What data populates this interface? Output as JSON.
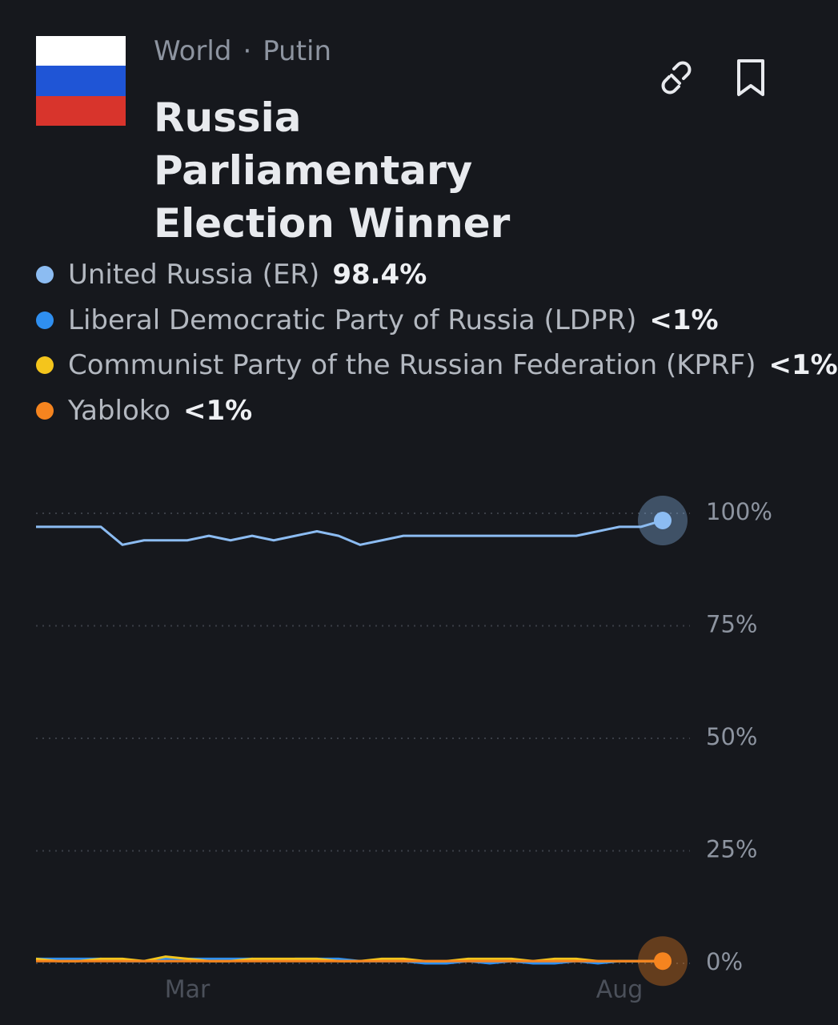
{
  "header": {
    "breadcrumb": [
      "World",
      "Putin"
    ],
    "title": "Russia Parliamentary Election Winner"
  },
  "chart_data": {
    "type": "line",
    "categories": [
      null,
      null,
      null,
      null,
      null,
      null,
      null,
      "Mar",
      null,
      null,
      null,
      null,
      null,
      null,
      null,
      null,
      null,
      null,
      null,
      null,
      null,
      null,
      null,
      null,
      null,
      null,
      null,
      "Aug",
      null,
      null
    ],
    "series": [
      {
        "name": "United Russia (ER)",
        "latest_label": "98.4%",
        "color": "#8cbcf2",
        "values": [
          97,
          97,
          97,
          97,
          93,
          94,
          94,
          94,
          95,
          94,
          95,
          94,
          95,
          96,
          95,
          93,
          94,
          95,
          95,
          95,
          95,
          95,
          95,
          95,
          95,
          95,
          96,
          97,
          97,
          98.4
        ]
      },
      {
        "name": "Liberal Democratic Party of Russia (LDPR)",
        "latest_label": "<1%",
        "color": "#2f8ff0",
        "values": [
          1,
          1,
          1,
          1,
          0.5,
          0.5,
          1,
          1,
          1,
          1,
          1,
          0.5,
          1,
          1,
          1,
          0.5,
          0.5,
          0.5,
          0,
          0,
          0.5,
          0,
          0.5,
          0,
          0,
          0.5,
          0,
          0.5,
          0.5,
          0.5
        ]
      },
      {
        "name": "Communist Party of the Russian Federation (KPRF)",
        "latest_label": "<1%",
        "color": "#f4c51c",
        "values": [
          1,
          0.5,
          0.5,
          1,
          1,
          0.5,
          1.5,
          1,
          0.5,
          0.5,
          1,
          1,
          1,
          1,
          0.5,
          0.5,
          1,
          1,
          0.5,
          0.5,
          1,
          1,
          1,
          0.5,
          1,
          1,
          0.5,
          0.5,
          0.5,
          0.5
        ]
      },
      {
        "name": "Yabloko",
        "latest_label": "<1%",
        "color": "#f5841f",
        "values": [
          0.5,
          0.5,
          0.5,
          0.5,
          0.5,
          0.5,
          0.5,
          0.5,
          0.5,
          0.5,
          0.5,
          0.5,
          0.5,
          0.5,
          0.5,
          0.5,
          0.5,
          0.5,
          0.5,
          0.5,
          0.5,
          0.5,
          0.5,
          0.5,
          0.5,
          0.5,
          0.5,
          0.5,
          0.5,
          0.5
        ]
      }
    ],
    "ylim": [
      0,
      100
    ],
    "yticks": [
      {
        "value": 0,
        "label": "0%"
      },
      {
        "value": 25,
        "label": "25%"
      },
      {
        "value": 50,
        "label": "50%"
      },
      {
        "value": 75,
        "label": "75%"
      },
      {
        "value": 100,
        "label": "100%"
      }
    ],
    "grid": true
  }
}
